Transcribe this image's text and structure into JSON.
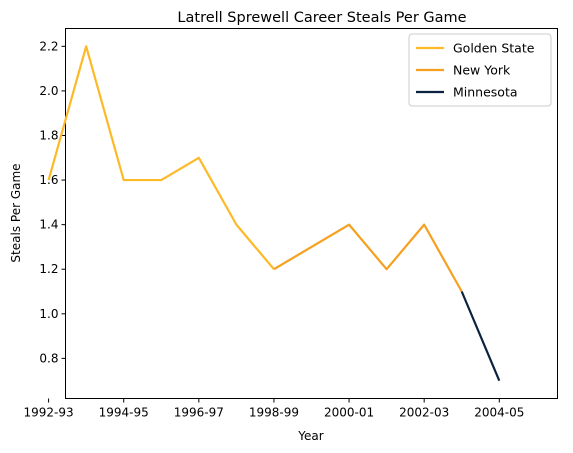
{
  "chart_data": {
    "type": "line",
    "title": "Latrell Sprewell Career Steals Per Game",
    "xlabel": "Year",
    "ylabel": "Steals Per Game",
    "x_tick_labels": [
      "1992-93",
      "1994-95",
      "1996-97",
      "1998-99",
      "2000-01",
      "2002-03",
      "2004-05"
    ],
    "y_ticks": [
      0.8,
      1.0,
      1.2,
      1.4,
      1.6,
      1.8,
      2.0,
      2.2
    ],
    "xlim": [
      1992.45,
      2005.55
    ],
    "ylim": [
      0.62,
      2.28
    ],
    "grid": false,
    "legend_position": "top-right",
    "series": [
      {
        "name": "Golden State",
        "color": "#FDB927",
        "x": [
          "1992-93",
          "1993-94",
          "1994-95",
          "1995-96",
          "1996-97",
          "1997-98",
          "1998-99"
        ],
        "values": [
          1.6,
          2.2,
          1.6,
          1.6,
          1.7,
          1.4,
          1.2
        ]
      },
      {
        "name": "New York",
        "color": "#F5A01E",
        "x": [
          "1998-99",
          "1999-00",
          "2000-01",
          "2001-02",
          "2002-03",
          "2003-04"
        ],
        "values": [
          1.2,
          1.3,
          1.4,
          1.2,
          1.4,
          1.1
        ]
      },
      {
        "name": "Minnesota",
        "color": "#0C2340",
        "x": [
          "2003-04",
          "2004-05"
        ],
        "values": [
          1.1,
          0.7
        ]
      }
    ]
  }
}
